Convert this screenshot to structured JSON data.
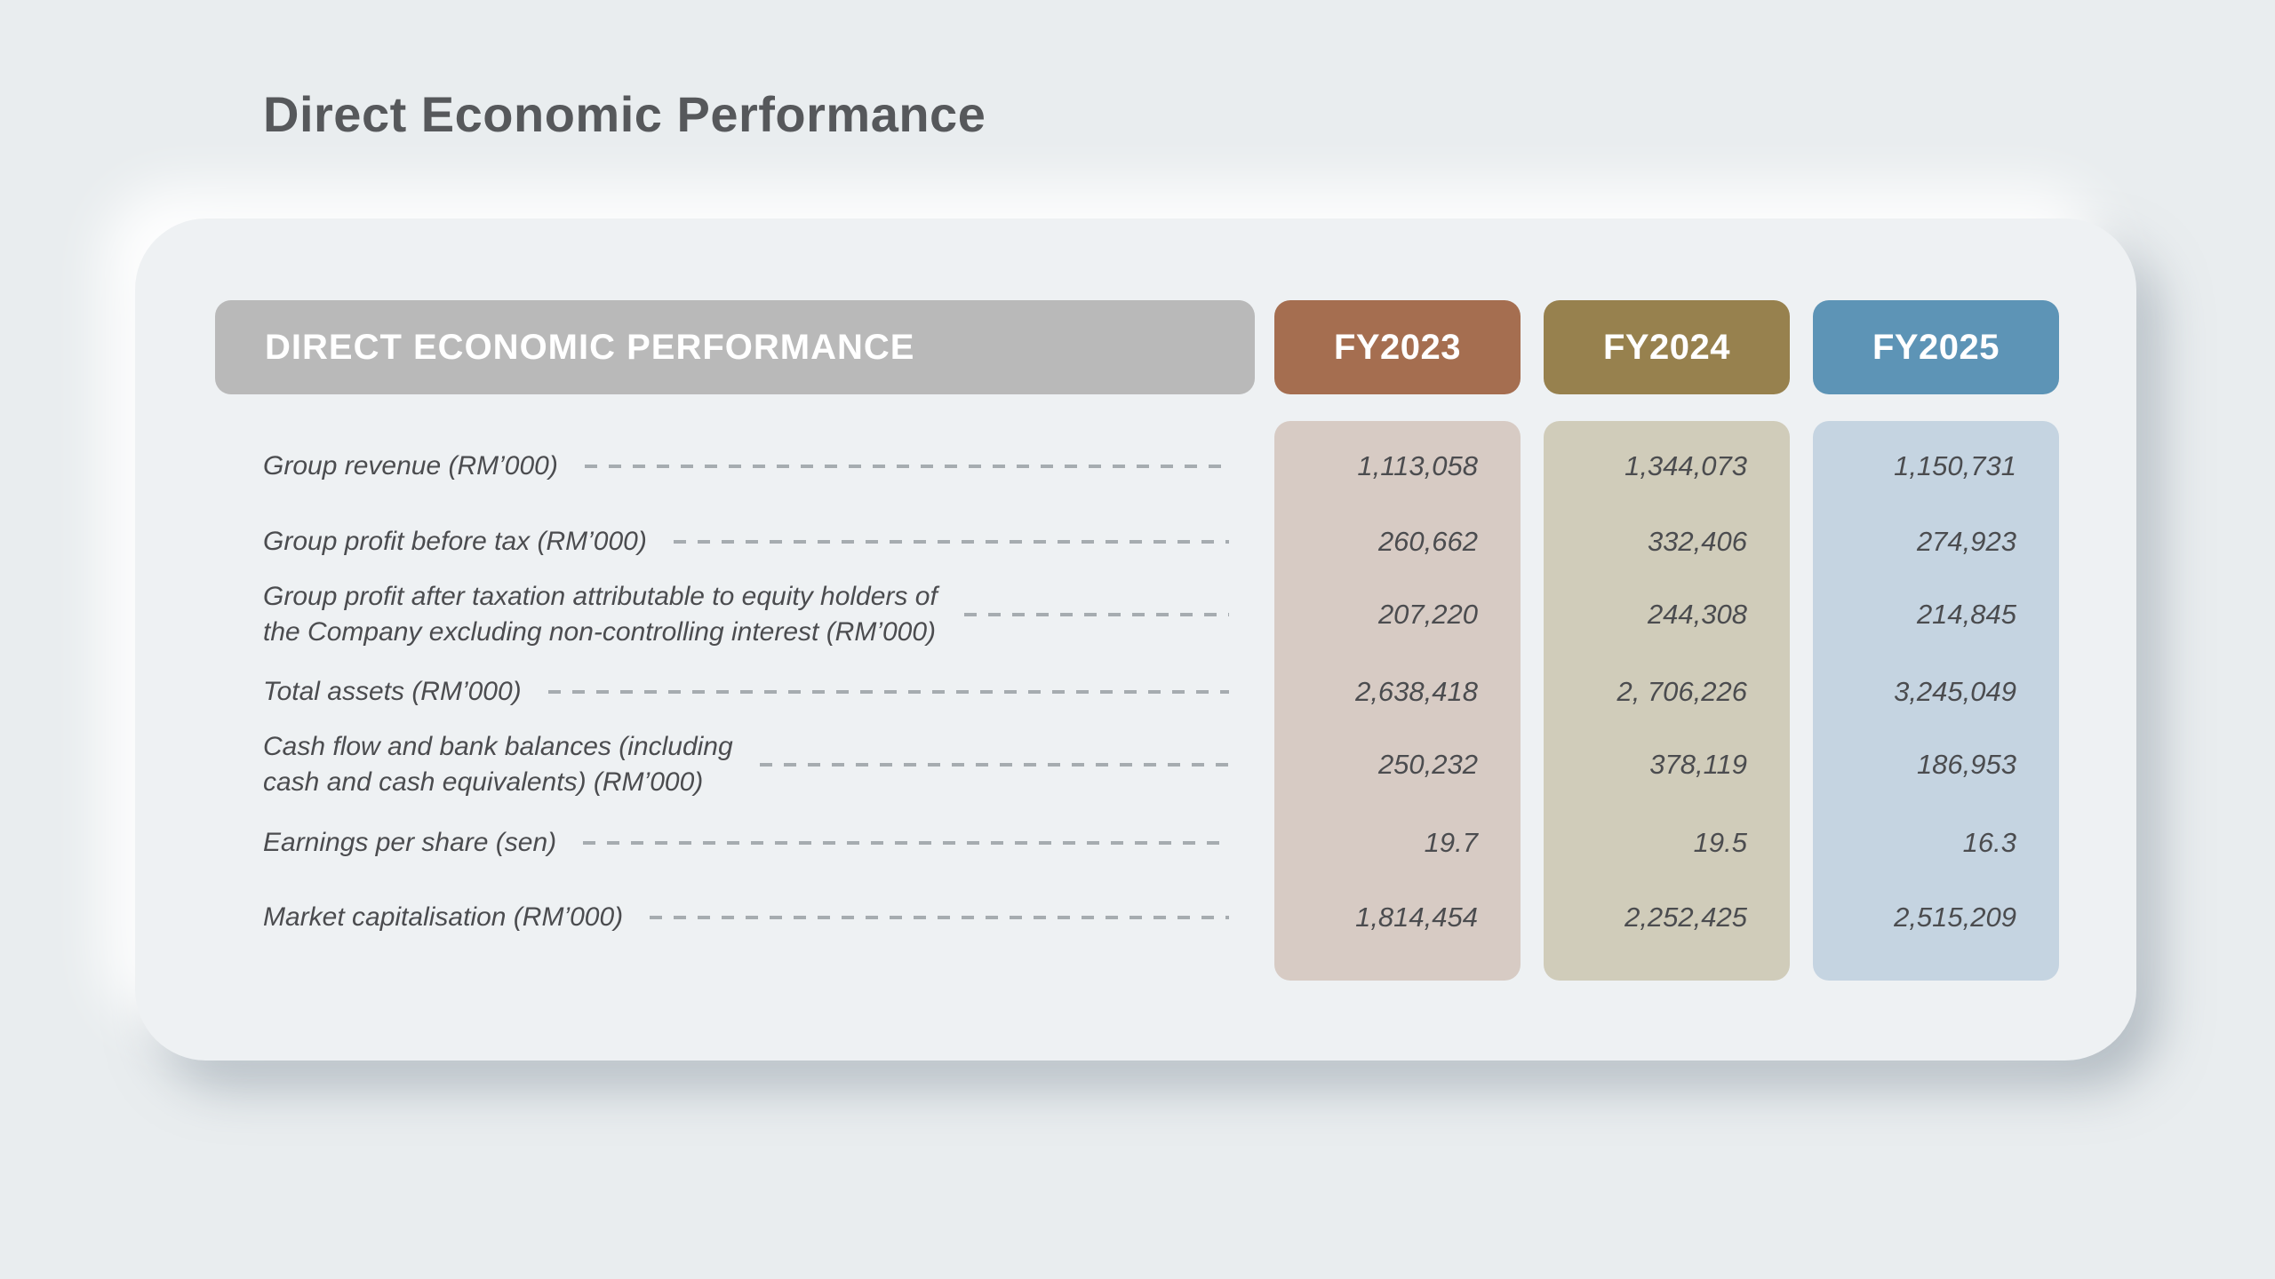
{
  "page": {
    "title": "Direct Economic Performance"
  },
  "colors": {
    "page_background": "#e9edef",
    "card_background": "#eef1f3",
    "header_bar": "#b9b9b9",
    "header_text": "#ffffff",
    "label_text": "#4b4c4f",
    "dash_leader": "#a6acb0",
    "fy2023_header": "#a56e50",
    "fy2023_body": "#d7cbc4",
    "fy2024_header": "#97814e",
    "fy2024_body": "#d0ccba",
    "fy2025_header": "#5d94b6",
    "fy2025_body": "#c5d4e1"
  },
  "table": {
    "header": "DIRECT ECONOMIC PERFORMANCE",
    "columns": [
      {
        "label": "FY2023",
        "header_color": "#a56e50",
        "body_color": "#d7cbc4"
      },
      {
        "label": "FY2024",
        "header_color": "#97814e",
        "body_color": "#d0ccba"
      },
      {
        "label": "FY2025",
        "header_color": "#5d94b6",
        "body_color": "#c5d4e1"
      }
    ],
    "rows": [
      {
        "label_lines": [
          "Group revenue (RM’000)"
        ],
        "values": [
          "1,113,058",
          "1,344,073",
          "1,150,731"
        ]
      },
      {
        "label_lines": [
          "Group profit before tax (RM’000)"
        ],
        "values": [
          "260,662",
          "332,406",
          "274,923"
        ]
      },
      {
        "label_lines": [
          "Group profit after taxation attributable to equity holders of",
          "the Company excluding non-controlling interest (RM’000)"
        ],
        "values": [
          "207,220",
          "244,308",
          "214,845"
        ]
      },
      {
        "label_lines": [
          "Total assets (RM’000)"
        ],
        "values": [
          "2,638,418",
          "2, 706,226",
          "3,245,049"
        ]
      },
      {
        "label_lines": [
          "Cash flow and bank balances (including",
          "cash and cash equivalents) (RM’000)"
        ],
        "values": [
          "250,232",
          "378,119",
          "186,953"
        ]
      },
      {
        "label_lines": [
          "Earnings per share (sen)"
        ],
        "values": [
          "19.7",
          "19.5",
          "16.3"
        ]
      },
      {
        "label_lines": [
          "Market capitalisation (RM’000)"
        ],
        "values": [
          "1,814,454",
          "2,252,425",
          "2,515,209"
        ]
      }
    ]
  }
}
